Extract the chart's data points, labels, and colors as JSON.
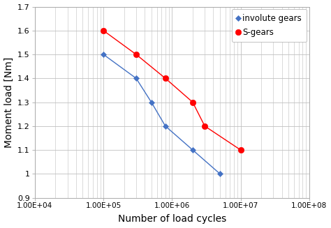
{
  "involute_x": [
    100000.0,
    300000.0,
    500000.0,
    800000.0,
    2000000.0,
    5000000.0
  ],
  "involute_y": [
    1.5,
    1.4,
    1.3,
    1.2,
    1.1,
    1.0
  ],
  "sgears_x": [
    100000.0,
    300000.0,
    800000.0,
    2000000.0,
    3000000.0,
    10000000.0
  ],
  "sgears_y": [
    1.6,
    1.5,
    1.4,
    1.3,
    1.2,
    1.1
  ],
  "involute_color": "#4472C4",
  "sgears_color": "#FF0000",
  "xlabel": "Number of load cycles",
  "ylabel": "Moment load [Nm]",
  "ylim": [
    0.9,
    1.7
  ],
  "xlim_log": [
    10000.0,
    100000000.0
  ],
  "legend_involute": "involute gears",
  "legend_sgears": "S-gears",
  "grid_color": "#C0C0C0",
  "background_color": "#FFFFFF",
  "xtick_labels": [
    "1.00E+04",
    "1.00E+05",
    "1.00E+06",
    "1.00E+07",
    "1.00E+08"
  ],
  "xtick_values": [
    10000.0,
    100000.0,
    1000000.0,
    10000000.0,
    100000000.0
  ],
  "ytick_values": [
    0.9,
    1.0,
    1.1,
    1.2,
    1.3,
    1.4,
    1.5,
    1.6,
    1.7
  ],
  "ytick_labels": [
    "0.9",
    "1",
    "1.1",
    "1.2",
    "1.3",
    "1.4",
    "1.5",
    "1.6",
    "1.7"
  ]
}
